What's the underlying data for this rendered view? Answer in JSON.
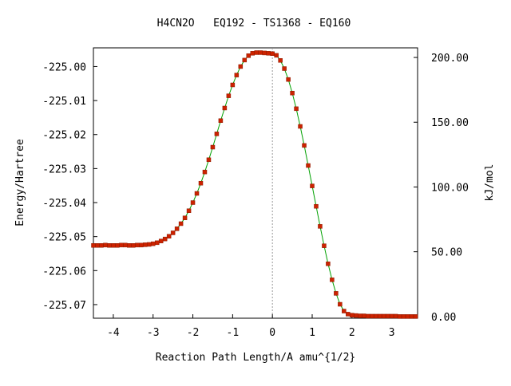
{
  "chart_data": {
    "type": "line",
    "title": "H4CN2O   EQ192 - TS1368 - EQ160",
    "xlabel": "Reaction Path Length/A amu^{1/2}",
    "ylabel_left": "Energy/Hartree",
    "ylabel_right": "kJ/mol",
    "xlim": [
      -4.5,
      3.65
    ],
    "ylim_left": [
      -225.074,
      -224.9945
    ],
    "x_ticks": [
      -4,
      -3,
      -2,
      -1,
      0,
      1,
      2,
      3
    ],
    "x_tick_labels": [
      "-4",
      "-3",
      "-2",
      "-1",
      "0",
      "1",
      "2",
      "3"
    ],
    "y_left_ticks": [
      -225.0,
      -225.01,
      -225.02,
      -225.03,
      -225.04,
      -225.05,
      -225.06,
      -225.07
    ],
    "y_left_tick_labels": [
      "-225.00",
      "-225.01",
      "-225.02",
      "-225.03",
      "-225.04",
      "-225.05",
      "-225.06",
      "-225.07"
    ],
    "y_right_ticks": [
      0,
      50,
      100,
      150,
      200
    ],
    "y_right_tick_labels": [
      "0.00",
      "50.00",
      "100.00",
      "150.00",
      "200.00"
    ],
    "right_axis_hartree_at_zero": -225.0735,
    "hartree_to_kjmol": 2625.5,
    "ts_x": 0,
    "colors": {
      "line": "#00a000",
      "marker": "#cc2200",
      "ts_line": "#999999",
      "frame": "#000000"
    },
    "grid": false,
    "series": [
      {
        "x": [
          -4.5,
          -4.4,
          -4.3,
          -4.2,
          -4.1,
          -4.0,
          -3.9,
          -3.8,
          -3.7,
          -3.6,
          -3.5,
          -3.4,
          -3.3,
          -3.2,
          -3.1,
          -3.0,
          -2.9,
          -2.8,
          -2.7,
          -2.6,
          -2.5,
          -2.4,
          -2.3,
          -2.2,
          -2.1,
          -2.0,
          -1.9,
          -1.8,
          -1.7,
          -1.6,
          -1.5,
          -1.4,
          -1.3,
          -1.2,
          -1.1,
          -1.0,
          -0.9,
          -0.8,
          -0.7,
          -0.6,
          -0.5,
          -0.4,
          -0.3,
          -0.2,
          -0.1,
          0.0,
          0.1,
          0.2,
          0.3,
          0.4,
          0.5,
          0.6,
          0.7,
          0.8,
          0.9,
          1.0,
          1.1,
          1.2,
          1.3,
          1.4,
          1.5,
          1.6,
          1.7,
          1.8,
          1.9,
          2.0,
          2.1,
          2.2,
          2.3,
          2.4,
          2.5,
          2.6,
          2.7,
          2.8,
          2.9,
          3.0,
          3.1,
          3.2,
          3.3,
          3.4,
          3.5,
          3.6
        ],
        "y": [
          -225.0526,
          -225.0526,
          -225.0526,
          -225.0525,
          -225.0526,
          -225.0526,
          -225.0526,
          -225.0525,
          -225.0525,
          -225.0526,
          -225.0526,
          -225.0525,
          -225.0525,
          -225.0524,
          -225.0523,
          -225.0521,
          -225.0518,
          -225.0513,
          -225.0507,
          -225.0499,
          -225.0489,
          -225.0477,
          -225.0462,
          -225.0445,
          -225.0424,
          -225.04,
          -225.0373,
          -225.0343,
          -225.031,
          -225.0274,
          -225.0237,
          -225.0198,
          -225.0159,
          -225.0122,
          -225.0086,
          -225.0054,
          -225.0025,
          -225.0,
          -224.9981,
          -224.9968,
          -224.9961,
          -224.9959,
          -224.9959,
          -224.996,
          -224.9961,
          -224.9962,
          -224.9967,
          -224.9982,
          -225.0006,
          -225.0038,
          -225.0078,
          -225.0124,
          -225.0176,
          -225.0232,
          -225.0291,
          -225.0351,
          -225.0411,
          -225.047,
          -225.0527,
          -225.058,
          -225.0627,
          -225.0667,
          -225.0699,
          -225.0719,
          -225.0728,
          -225.0731,
          -225.0732,
          -225.0733,
          -225.0733,
          -225.0734,
          -225.0734,
          -225.0734,
          -225.0734,
          -225.0734,
          -225.0734,
          -225.0734,
          -225.0734,
          -225.0735,
          -225.0735,
          -225.0735,
          -225.0735,
          -225.0735
        ]
      }
    ]
  }
}
